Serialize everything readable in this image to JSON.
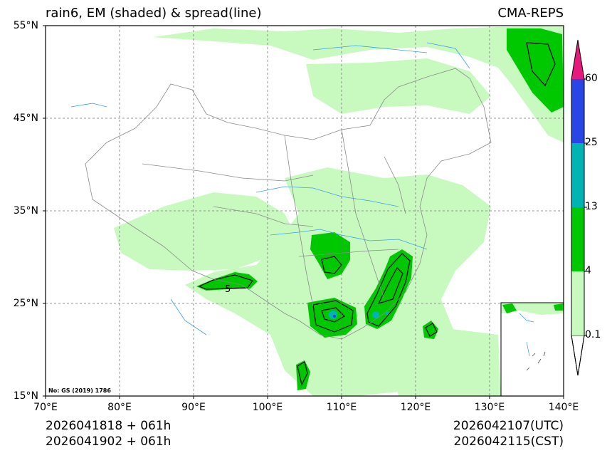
{
  "header": {
    "title": "rain6, EM (shaded) & spread(line)",
    "source": "CMA-REPS"
  },
  "map": {
    "lat_labels": [
      "55°N",
      "45°N",
      "35°N",
      "25°N",
      "15°N"
    ],
    "lon_labels": [
      "70°E",
      "80°E",
      "90°E",
      "100°E",
      "110°E",
      "120°E",
      "130°E",
      "140°E"
    ],
    "map_note": "No: GS (2019) 1786",
    "contour_label": "5"
  },
  "colorbar": {
    "levels": [
      "0.1",
      "4",
      "13",
      "25",
      "60"
    ],
    "colors": {
      "light_green": "#c8fac0",
      "green": "#00c800",
      "teal": "#00b4b4",
      "blue": "#2846e6",
      "magenta": "#e6197d"
    }
  },
  "footer": {
    "init_utc": "2026041818  +  061h",
    "init_cst": "2026041902  +  061h",
    "valid_utc": "2026042107(UTC)",
    "valid_cst": "2026042115(CST)"
  }
}
